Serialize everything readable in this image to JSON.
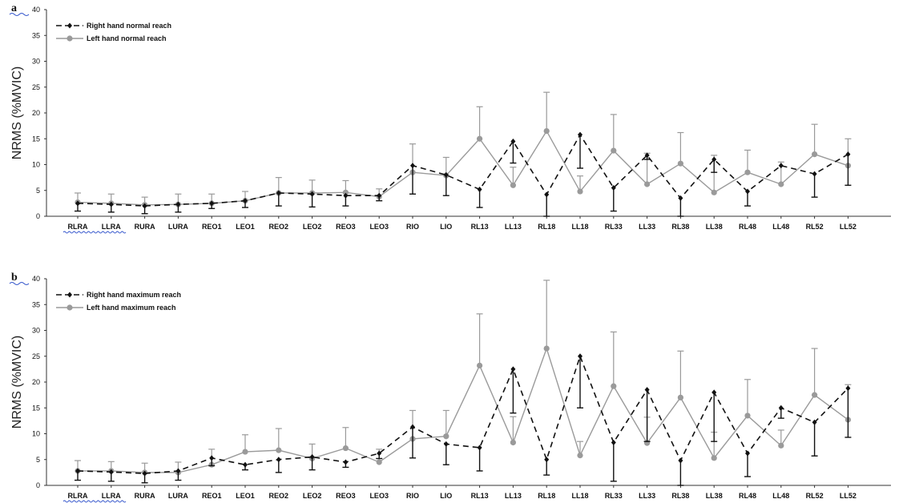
{
  "chart_data": [
    {
      "type": "line",
      "panel_label": "a",
      "ylabel": "NRMS (%MVIC)",
      "ylim": [
        0,
        40
      ],
      "yticks": [
        0,
        5,
        10,
        15,
        20,
        25,
        30,
        35,
        40
      ],
      "categories": [
        "RLRA",
        "LLRA",
        "RURA",
        "LURA",
        "REO1",
        "LEO1",
        "REO2",
        "LEO2",
        "REO3",
        "LEO3",
        "RIO",
        "LIO",
        "RL13",
        "LL13",
        "RL18",
        "LL18",
        "RL33",
        "LL33",
        "RL38",
        "LL38",
        "RL48",
        "LL48",
        "RL52",
        "LL52"
      ],
      "legend_position": "top-left",
      "series": [
        {
          "name": "Right hand normal reach",
          "style": "dashed-black-diamond",
          "color": "#111111",
          "values": [
            2.5,
            2.3,
            2.0,
            2.3,
            2.5,
            3.0,
            4.5,
            4.3,
            4.0,
            4.0,
            9.8,
            8.0,
            5.2,
            14.5,
            4.2,
            15.8,
            5.5,
            11.8,
            3.5,
            11.0,
            4.8,
            9.8,
            8.2,
            12.0
          ],
          "err_low": [
            1.5,
            1.5,
            1.5,
            1.5,
            1.0,
            1.3,
            2.5,
            2.5,
            2.0,
            1.0,
            5.5,
            4.0,
            3.5,
            4.2,
            4.2,
            6.5,
            4.5,
            0.8,
            3.5,
            2.5,
            2.8,
            0.0,
            4.5,
            6.0
          ],
          "err_high": [
            0.0,
            0.0,
            0.0,
            0.0,
            0.0,
            0.0,
            0.0,
            0.0,
            0.0,
            0.0,
            0.0,
            0.0,
            0.0,
            0.0,
            0.0,
            0.0,
            0.0,
            0.0,
            0.0,
            0.0,
            0.0,
            0.0,
            0.0,
            0.0
          ]
        },
        {
          "name": "Left hand normal reach",
          "style": "solid-gray-circle",
          "color": "#9a9a9a",
          "values": [
            2.7,
            2.5,
            2.2,
            2.3,
            2.5,
            3.0,
            4.5,
            4.5,
            4.6,
            3.8,
            8.5,
            7.9,
            15.0,
            6.0,
            16.5,
            4.8,
            12.7,
            6.2,
            10.2,
            4.6,
            8.5,
            6.2,
            12.0,
            9.8
          ],
          "err_low": [
            0,
            0,
            0,
            0,
            0,
            0,
            0,
            0,
            0,
            0,
            0,
            0,
            0,
            0,
            0,
            0,
            0,
            0,
            0,
            0,
            0,
            0,
            0,
            0
          ],
          "err_high": [
            1.8,
            1.8,
            1.5,
            2.0,
            1.8,
            1.8,
            3.0,
            2.5,
            2.3,
            1.5,
            5.5,
            3.5,
            6.2,
            3.5,
            7.5,
            3.0,
            7.0,
            6.0,
            6.0,
            7.2,
            4.3,
            4.3,
            5.8,
            5.2
          ]
        }
      ]
    },
    {
      "type": "line",
      "panel_label": "b",
      "ylabel": "NRMS (%MVIC)",
      "ylim": [
        0,
        40
      ],
      "yticks": [
        0,
        5,
        10,
        15,
        20,
        25,
        30,
        35,
        40
      ],
      "categories": [
        "RLRA",
        "LLRA",
        "RURA",
        "LURA",
        "REO1",
        "LEO1",
        "REO2",
        "LEO2",
        "REO3",
        "LEO3",
        "RIO",
        "LIO",
        "RL13",
        "LL13",
        "RL18",
        "LL18",
        "RL33",
        "LL33",
        "RL38",
        "LL38",
        "RL48",
        "LL48",
        "RL52",
        "LL52"
      ],
      "legend_position": "top-left",
      "series": [
        {
          "name": "Right hand maximum reach",
          "style": "dashed-black-diamond",
          "color": "#111111",
          "values": [
            2.8,
            2.6,
            2.3,
            2.8,
            5.3,
            4.0,
            5.0,
            5.5,
            4.5,
            6.2,
            11.3,
            8.0,
            7.3,
            22.5,
            5.0,
            25.0,
            8.3,
            18.5,
            4.8,
            18.0,
            6.2,
            15.0,
            12.2,
            18.8
          ],
          "err_low": [
            1.8,
            1.8,
            1.8,
            1.8,
            1.5,
            1.0,
            2.5,
            2.5,
            1.0,
            1.0,
            6.0,
            4.0,
            4.5,
            8.5,
            3.0,
            10.0,
            7.5,
            10.0,
            4.8,
            9.5,
            4.5,
            2.0,
            6.5,
            9.5
          ],
          "err_high": [
            0,
            0,
            0,
            0,
            0,
            0,
            0,
            0,
            0,
            0,
            0,
            0,
            0,
            0,
            0,
            0,
            0,
            0,
            0,
            0,
            0,
            0,
            0,
            0
          ]
        },
        {
          "name": "Left hand maximum reach",
          "style": "solid-gray-circle",
          "color": "#9a9a9a",
          "values": [
            2.8,
            2.8,
            2.5,
            2.5,
            4.0,
            6.5,
            6.8,
            5.2,
            7.2,
            4.5,
            9.0,
            9.5,
            23.2,
            8.3,
            26.5,
            5.8,
            19.2,
            8.2,
            17.0,
            5.3,
            13.5,
            7.7,
            17.5,
            12.7
          ],
          "err_low": [
            0,
            0,
            0,
            0,
            0,
            0,
            0,
            0,
            0,
            0,
            0,
            0,
            0,
            0,
            0,
            0,
            0,
            0,
            0,
            0,
            0,
            0,
            0,
            0
          ],
          "err_high": [
            2.0,
            1.8,
            1.8,
            2.0,
            3.0,
            3.3,
            4.2,
            2.8,
            4.0,
            2.5,
            5.5,
            5.0,
            10.0,
            5.0,
            13.2,
            2.7,
            10.5,
            5.0,
            9.0,
            5.0,
            7.0,
            3.0,
            9.0,
            6.8
          ]
        }
      ]
    }
  ]
}
